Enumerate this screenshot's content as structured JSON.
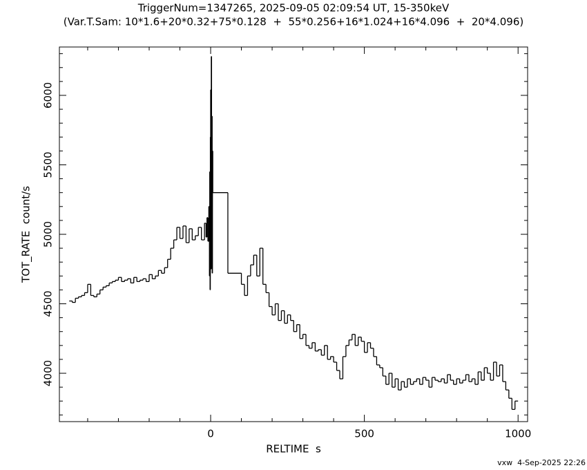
{
  "chart_data": {
    "type": "step",
    "title": "TriggerNum=1347265, 2025-09-05 02:09:54 UT, 15-350keV",
    "subtitle": "(Var.T.Sam: 10*1.6+20*0.32+75*0.128  +  55*0.256+16*1.024+16*4.096  +  20*4.096)",
    "x_label": "RELTIME  s",
    "y_label": "TOT_RATE  count/s",
    "footer": "vxw  4-Sep-2025 22:26",
    "color": "#000000",
    "xlim": [
      -492,
      1031
    ],
    "ylim": [
      3652,
      6348
    ],
    "xticks": [
      0,
      500,
      1000
    ],
    "yticks": [
      4000,
      4500,
      5000,
      5500,
      6000
    ],
    "xminor_ticks": [
      -400,
      -300,
      -200,
      -100,
      100,
      200,
      300,
      400,
      600,
      700,
      800,
      900
    ],
    "yminor_ticks": [
      3700,
      3800,
      3900,
      4100,
      4200,
      4300,
      4400,
      4600,
      4700,
      4800,
      4900,
      5100,
      5200,
      5300,
      5400,
      5600,
      5700,
      5800,
      5900,
      6100,
      6200,
      6300
    ],
    "x": [
      -460,
      -450,
      -440,
      -430,
      -420,
      -410,
      -400,
      -390,
      -380,
      -370,
      -360,
      -350,
      -340,
      -330,
      -320,
      -310,
      -300,
      -290,
      -280,
      -270,
      -260,
      -250,
      -240,
      -230,
      -220,
      -210,
      -200,
      -190,
      -180,
      -170,
      -160,
      -150,
      -140,
      -130,
      -120,
      -110,
      -100,
      -90,
      -80,
      -70,
      -60,
      -50,
      -40,
      -30,
      -20,
      -15,
      -12,
      -9,
      -6,
      -4,
      -3,
      -2,
      -1,
      0,
      1,
      2,
      3,
      4,
      5,
      6,
      7,
      56,
      100,
      110,
      120,
      130,
      140,
      150,
      160,
      170,
      180,
      190,
      200,
      210,
      220,
      230,
      240,
      250,
      260,
      270,
      280,
      290,
      300,
      310,
      320,
      330,
      340,
      350,
      360,
      370,
      380,
      390,
      400,
      410,
      420,
      430,
      440,
      450,
      460,
      470,
      480,
      490,
      500,
      510,
      520,
      530,
      540,
      550,
      560,
      570,
      580,
      590,
      600,
      610,
      620,
      630,
      640,
      650,
      660,
      670,
      680,
      690,
      700,
      710,
      720,
      730,
      740,
      750,
      760,
      770,
      780,
      790,
      800,
      810,
      820,
      830,
      840,
      850,
      860,
      870,
      880,
      890,
      900,
      910,
      920,
      930,
      940,
      950,
      960,
      970,
      980,
      990
    ],
    "values": [
      4520,
      4510,
      4540,
      4550,
      4560,
      4580,
      4640,
      4560,
      4550,
      4570,
      4600,
      4620,
      4630,
      4650,
      4660,
      4670,
      4690,
      4660,
      4670,
      4680,
      4650,
      4690,
      4660,
      4670,
      4680,
      4660,
      4710,
      4680,
      4700,
      4740,
      4720,
      4760,
      4820,
      4900,
      4960,
      5050,
      4970,
      5060,
      4940,
      5040,
      4960,
      4990,
      5050,
      4960,
      5080,
      4980,
      5120,
      4950,
      5200,
      4700,
      5450,
      4600,
      5700,
      6040,
      4750,
      6280,
      5200,
      5850,
      4720,
      5600,
      5300,
      4720,
      4640,
      4560,
      4700,
      4780,
      4850,
      4700,
      4900,
      4640,
      4580,
      4480,
      4420,
      4500,
      4380,
      4450,
      4360,
      4420,
      4380,
      4300,
      4350,
      4250,
      4280,
      4200,
      4180,
      4220,
      4160,
      4170,
      4130,
      4200,
      4100,
      4120,
      4080,
      4020,
      3960,
      4120,
      4200,
      4240,
      4280,
      4200,
      4260,
      4230,
      4150,
      4220,
      4180,
      4120,
      4060,
      4040,
      3980,
      3920,
      4000,
      3900,
      3960,
      3880,
      3940,
      3900,
      3960,
      3920,
      3940,
      3960,
      3920,
      3970,
      3950,
      3900,
      3970,
      3950,
      3940,
      3960,
      3930,
      3990,
      3950,
      3920,
      3960,
      3930,
      3950,
      3990,
      3940,
      3960,
      3920,
      4010,
      3950,
      4040,
      4000,
      3950,
      4080,
      3980,
      4060,
      3940,
      3880,
      3820,
      3740,
      3800
    ]
  }
}
